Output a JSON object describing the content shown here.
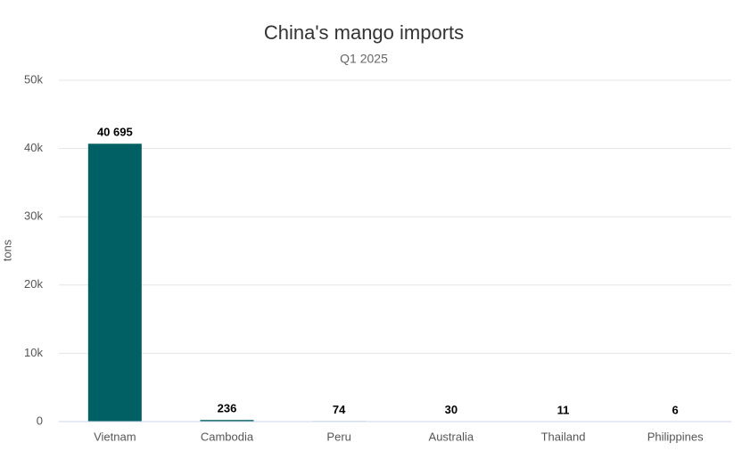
{
  "chart_data": {
    "type": "bar",
    "title": "China's mango imports",
    "subtitle": "Q1 2025",
    "y_label": "tons",
    "categories": [
      "Vietnam",
      "Cambodia",
      "Peru",
      "Australia",
      "Thailand",
      "Philippines"
    ],
    "values": [
      40695,
      236,
      74,
      30,
      11,
      6
    ],
    "value_labels": [
      "40 695",
      "236",
      "74",
      "30",
      "11",
      "6"
    ],
    "color": "#006064",
    "ylim": [
      0,
      50000
    ],
    "yticks": [
      0,
      {
        "value": 10000,
        "label": "10k"
      },
      {
        "value": 20000,
        "label": "20k"
      },
      {
        "value": 30000,
        "label": "30k"
      },
      {
        "value": 40000,
        "label": "40k"
      },
      {
        "value": 50000,
        "label": "50k"
      }
    ],
    "grid": true
  }
}
